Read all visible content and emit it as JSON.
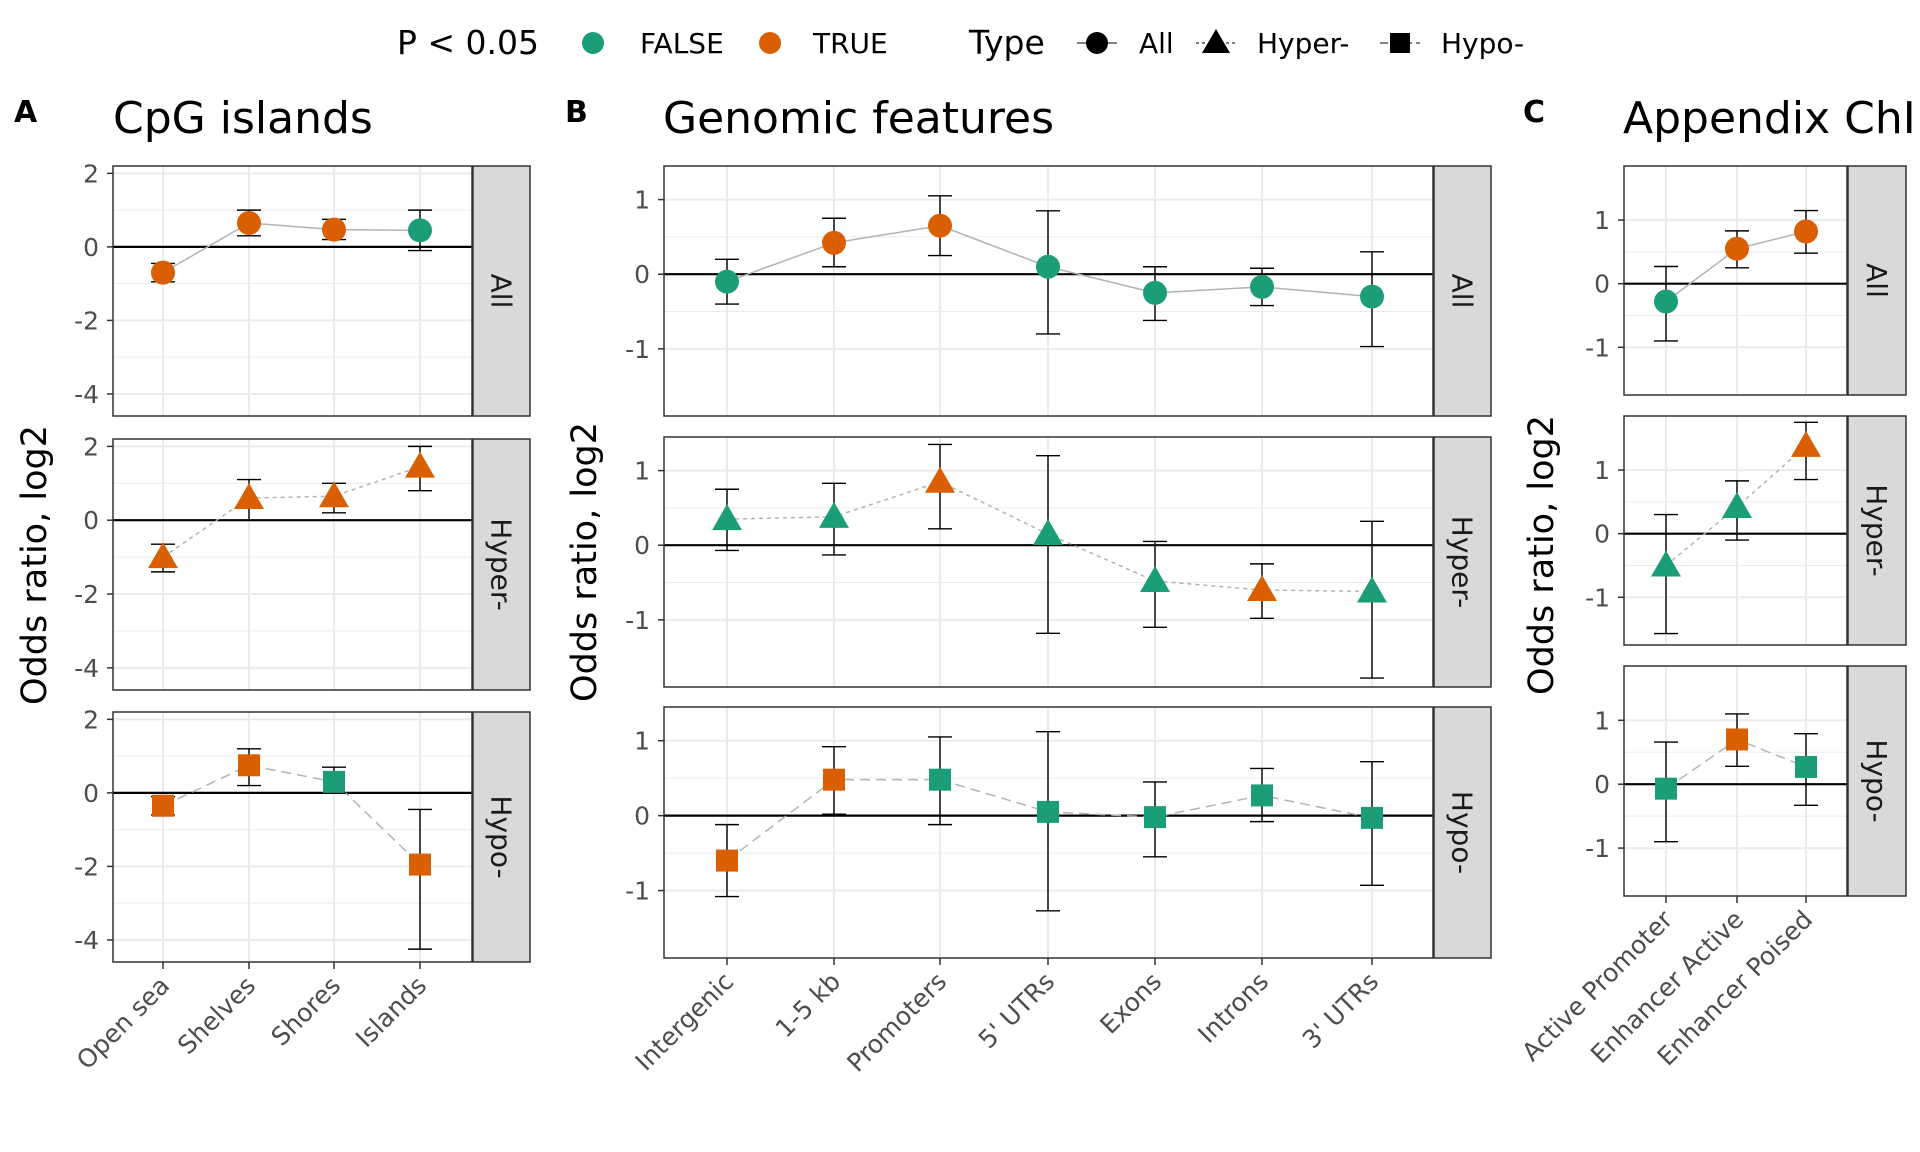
{
  "legend": {
    "p_title": "P < 0.05",
    "p_entries": [
      {
        "label": "FALSE",
        "color": "#1b9e77"
      },
      {
        "label": "TRUE",
        "color": "#d95f02"
      }
    ],
    "type_title": "Type",
    "type_entries": [
      {
        "label": "All",
        "shape": "circle"
      },
      {
        "label": "Hyper-",
        "shape": "triangle"
      },
      {
        "label": "Hypo-",
        "shape": "square"
      }
    ]
  },
  "colors": {
    "false": "#1b9e77",
    "true": "#d95f02",
    "strip_bg": "#d9d9d9",
    "zero_line": "#000000",
    "grid": "#ebebeb"
  },
  "ylabel": "Odds ratio, log2",
  "facet_strips": [
    "All",
    "Hyper-",
    "Hypo-"
  ],
  "chart_data": [
    {
      "tag": "A",
      "title": "CpG islands",
      "type": "scatter",
      "categories": [
        "Open sea",
        "Shelves",
        "Shores",
        "Islands"
      ],
      "ylim": [
        -4.6,
        2.2
      ],
      "yticks": [
        -4,
        -2,
        0,
        2
      ],
      "yticklabels": [
        "-4",
        "-2",
        "0",
        "2"
      ],
      "series": [
        {
          "name": "All",
          "shape": "circle",
          "values": [
            -0.7,
            0.65,
            0.47,
            0.45
          ],
          "lower": [
            -0.95,
            0.3,
            0.2,
            -0.1
          ],
          "upper": [
            -0.45,
            1.0,
            0.75,
            1.0
          ],
          "significant": [
            true,
            true,
            true,
            false
          ]
        },
        {
          "name": "Hyper-",
          "shape": "triangle",
          "values": [
            -1.0,
            0.6,
            0.65,
            1.45
          ],
          "lower": [
            -1.4,
            0.0,
            0.2,
            0.8
          ],
          "upper": [
            -0.65,
            1.1,
            1.0,
            2.0
          ],
          "significant": [
            true,
            true,
            true,
            true
          ]
        },
        {
          "name": "Hypo-",
          "shape": "square",
          "values": [
            -0.35,
            0.75,
            0.3,
            -1.95
          ],
          "lower": [
            -0.6,
            0.2,
            0.0,
            -4.25
          ],
          "upper": [
            -0.1,
            1.2,
            0.7,
            -0.45
          ],
          "significant": [
            true,
            true,
            false,
            true
          ]
        }
      ]
    },
    {
      "tag": "B",
      "title": "Genomic features",
      "type": "scatter",
      "categories": [
        "Intergenic",
        "1-5 kb",
        "Promoters",
        "5' UTRs",
        "Exons",
        "Introns",
        "3' UTRs"
      ],
      "ylim": [
        -1.9,
        1.45
      ],
      "yticks": [
        -1,
        0,
        1
      ],
      "yticklabels": [
        "-1",
        "0",
        "1"
      ],
      "series": [
        {
          "name": "All",
          "shape": "circle",
          "values": [
            -0.1,
            0.42,
            0.65,
            0.1,
            -0.25,
            -0.17,
            -0.3
          ],
          "lower": [
            -0.4,
            0.1,
            0.25,
            -0.8,
            -0.62,
            -0.42,
            -0.97
          ],
          "upper": [
            0.2,
            0.75,
            1.05,
            0.85,
            0.1,
            0.08,
            0.3
          ],
          "significant": [
            false,
            true,
            true,
            false,
            false,
            false,
            false
          ]
        },
        {
          "name": "Hyper-",
          "shape": "triangle",
          "values": [
            0.35,
            0.38,
            0.85,
            0.15,
            -0.48,
            -0.6,
            -0.62
          ],
          "lower": [
            -0.07,
            -0.13,
            0.22,
            -1.18,
            -1.1,
            -0.98,
            -1.78
          ],
          "upper": [
            0.75,
            0.83,
            1.35,
            1.2,
            0.05,
            -0.25,
            0.32
          ],
          "significant": [
            false,
            false,
            true,
            false,
            false,
            true,
            false
          ]
        },
        {
          "name": "Hypo-",
          "shape": "square",
          "values": [
            -0.6,
            0.48,
            0.48,
            0.05,
            -0.02,
            0.27,
            -0.03
          ],
          "lower": [
            -1.08,
            0.02,
            -0.12,
            -1.27,
            -0.55,
            -0.08,
            -0.93
          ],
          "upper": [
            -0.12,
            0.92,
            1.05,
            1.12,
            0.45,
            0.63,
            0.72
          ],
          "significant": [
            true,
            true,
            false,
            false,
            false,
            false,
            false
          ]
        }
      ]
    },
    {
      "tag": "C",
      "title": "Appendix ChI",
      "type": "scatter",
      "categories": [
        "Active Promoter",
        "Enhancer Active",
        "Enhancer Poised"
      ],
      "ylim": [
        -1.75,
        1.85
      ],
      "yticks": [
        -1,
        0,
        1
      ],
      "yticklabels": [
        "-1",
        "0",
        "1"
      ],
      "series": [
        {
          "name": "All",
          "shape": "circle",
          "values": [
            -0.28,
            0.55,
            0.82
          ],
          "lower": [
            -0.9,
            0.25,
            0.48
          ],
          "upper": [
            0.27,
            0.83,
            1.15
          ],
          "significant": [
            false,
            true,
            true
          ]
        },
        {
          "name": "Hyper-",
          "shape": "triangle",
          "values": [
            -0.5,
            0.42,
            1.38
          ],
          "lower": [
            -1.57,
            -0.1,
            0.85
          ],
          "upper": [
            0.3,
            0.83,
            1.75
          ],
          "significant": [
            false,
            false,
            true
          ]
        },
        {
          "name": "Hypo-",
          "shape": "square",
          "values": [
            -0.07,
            0.7,
            0.27
          ],
          "lower": [
            -0.9,
            0.28,
            -0.33
          ],
          "upper": [
            0.66,
            1.1,
            0.79
          ],
          "significant": [
            false,
            true,
            false
          ]
        }
      ]
    }
  ]
}
